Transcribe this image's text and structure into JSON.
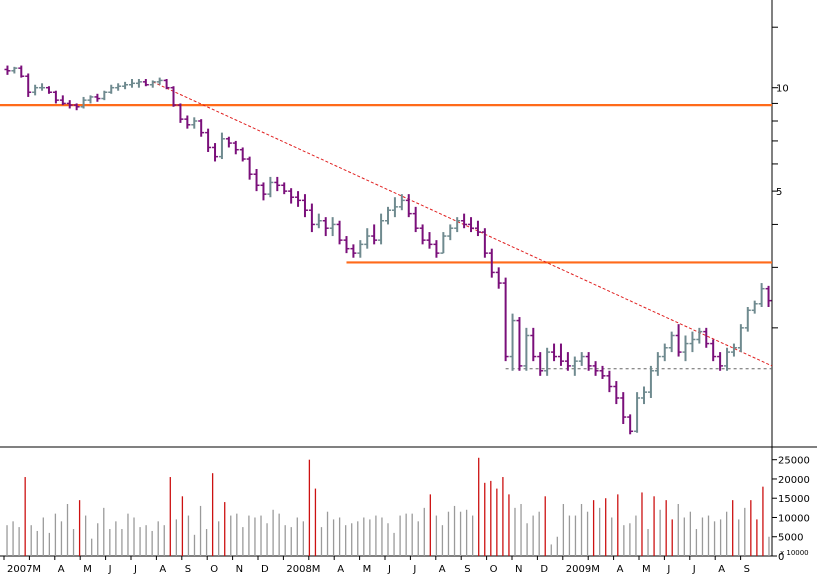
{
  "chart_data": [
    {
      "type": "ohlc",
      "title": "",
      "xlabel": "",
      "ylabel": "",
      "y_scale": "log",
      "ylim": [
        0.9,
        18
      ],
      "ytick_labels": [
        "10",
        "5"
      ],
      "x_tick_labels": [
        "2007",
        "M",
        "A",
        "M",
        "J",
        "J",
        "A",
        "S",
        "O",
        "N",
        "D",
        "2008",
        "M",
        "A",
        "M",
        "J",
        "J",
        "A",
        "S",
        "O",
        "N",
        "D",
        "2009",
        "M",
        "A",
        "M",
        "J",
        "J",
        "A",
        "S"
      ],
      "up_color": "#6f8a8f",
      "down_color": "#7a0f7a",
      "bars": [
        [
          11.3,
          11.6,
          10.9,
          11.2
        ],
        [
          11.2,
          11.5,
          11.0,
          11.4
        ],
        [
          11.4,
          11.6,
          10.7,
          10.8
        ],
        [
          10.8,
          11.0,
          9.4,
          9.7
        ],
        [
          9.7,
          10.2,
          9.5,
          10.0
        ],
        [
          10.0,
          10.3,
          9.8,
          10.0
        ],
        [
          10.0,
          10.1,
          9.6,
          9.7
        ],
        [
          9.7,
          9.8,
          9.0,
          9.2
        ],
        [
          9.2,
          9.5,
          8.9,
          9.0
        ],
        [
          9.0,
          9.2,
          8.7,
          8.9
        ],
        [
          8.9,
          9.0,
          8.6,
          8.8
        ],
        [
          8.8,
          9.4,
          8.7,
          9.2
        ],
        [
          9.2,
          9.5,
          9.0,
          9.4
        ],
        [
          9.4,
          9.6,
          9.1,
          9.3
        ],
        [
          9.3,
          9.8,
          9.2,
          9.7
        ],
        [
          9.7,
          10.2,
          9.6,
          10.0
        ],
        [
          10.0,
          10.3,
          9.8,
          10.1
        ],
        [
          10.1,
          10.4,
          9.9,
          10.2
        ],
        [
          10.2,
          10.6,
          10.0,
          10.3
        ],
        [
          10.3,
          10.6,
          10.0,
          10.4
        ],
        [
          10.4,
          10.6,
          10.1,
          10.2
        ],
        [
          10.2,
          10.5,
          10.0,
          10.4
        ],
        [
          10.4,
          10.7,
          10.2,
          10.5
        ],
        [
          10.5,
          10.6,
          9.9,
          10.0
        ],
        [
          10.0,
          10.1,
          8.8,
          8.9
        ],
        [
          8.9,
          9.0,
          7.9,
          8.1
        ],
        [
          8.1,
          8.3,
          7.6,
          7.8
        ],
        [
          7.8,
          8.2,
          7.6,
          8.0
        ],
        [
          8.0,
          8.1,
          7.2,
          7.4
        ],
        [
          7.4,
          7.6,
          6.5,
          6.7
        ],
        [
          6.7,
          6.9,
          6.1,
          6.3
        ],
        [
          6.3,
          7.4,
          6.2,
          7.1
        ],
        [
          7.1,
          7.2,
          6.7,
          6.9
        ],
        [
          6.9,
          7.0,
          6.4,
          6.6
        ],
        [
          6.6,
          6.7,
          6.1,
          6.2
        ],
        [
          6.2,
          6.3,
          5.4,
          5.6
        ],
        [
          5.6,
          5.8,
          5.0,
          5.2
        ],
        [
          5.2,
          5.3,
          4.7,
          4.9
        ],
        [
          4.9,
          5.5,
          4.8,
          5.3
        ],
        [
          5.3,
          5.5,
          5.0,
          5.2
        ],
        [
          5.2,
          5.3,
          4.9,
          5.0
        ],
        [
          5.0,
          5.1,
          4.6,
          4.8
        ],
        [
          4.8,
          5.0,
          4.5,
          4.7
        ],
        [
          4.7,
          4.9,
          4.2,
          4.4
        ],
        [
          4.4,
          4.6,
          3.8,
          4.0
        ],
        [
          4.0,
          4.3,
          3.9,
          4.1
        ],
        [
          4.1,
          4.2,
          3.7,
          3.9
        ],
        [
          3.9,
          4.2,
          3.7,
          4.0
        ],
        [
          4.0,
          4.1,
          3.5,
          3.6
        ],
        [
          3.6,
          3.7,
          3.3,
          3.4
        ],
        [
          3.4,
          3.5,
          3.2,
          3.3
        ],
        [
          3.3,
          3.6,
          3.2,
          3.5
        ],
        [
          3.5,
          3.9,
          3.4,
          3.7
        ],
        [
          3.7,
          4.0,
          3.5,
          3.6
        ],
        [
          3.6,
          4.3,
          3.5,
          4.1
        ],
        [
          4.1,
          4.5,
          4.0,
          4.4
        ],
        [
          4.4,
          4.8,
          4.2,
          4.5
        ],
        [
          4.5,
          4.9,
          4.4,
          4.7
        ],
        [
          4.7,
          4.9,
          4.2,
          4.3
        ],
        [
          4.3,
          4.5,
          3.8,
          3.9
        ],
        [
          3.9,
          4.0,
          3.5,
          3.6
        ],
        [
          3.6,
          3.8,
          3.4,
          3.5
        ],
        [
          3.5,
          3.6,
          3.2,
          3.3
        ],
        [
          3.3,
          3.8,
          3.3,
          3.7
        ],
        [
          3.7,
          4.0,
          3.6,
          3.9
        ],
        [
          3.9,
          4.2,
          3.8,
          4.1
        ],
        [
          4.1,
          4.3,
          3.9,
          4.0
        ],
        [
          4.0,
          4.2,
          3.8,
          3.9
        ],
        [
          3.9,
          4.1,
          3.7,
          3.8
        ],
        [
          3.8,
          3.9,
          3.2,
          3.3
        ],
        [
          3.3,
          3.4,
          2.8,
          2.9
        ],
        [
          2.9,
          3.0,
          2.6,
          2.7
        ],
        [
          2.7,
          2.8,
          1.6,
          1.65
        ],
        [
          1.65,
          2.2,
          1.5,
          2.1
        ],
        [
          2.1,
          2.15,
          1.5,
          1.55
        ],
        [
          1.55,
          2.0,
          1.5,
          1.9
        ],
        [
          1.9,
          2.0,
          1.6,
          1.65
        ],
        [
          1.65,
          1.7,
          1.45,
          1.5
        ],
        [
          1.5,
          1.75,
          1.45,
          1.7
        ],
        [
          1.7,
          1.8,
          1.6,
          1.65
        ],
        [
          1.65,
          1.8,
          1.55,
          1.6
        ],
        [
          1.6,
          1.7,
          1.5,
          1.55
        ],
        [
          1.55,
          1.65,
          1.45,
          1.6
        ],
        [
          1.6,
          1.7,
          1.55,
          1.65
        ],
        [
          1.65,
          1.7,
          1.5,
          1.55
        ],
        [
          1.55,
          1.6,
          1.45,
          1.5
        ],
        [
          1.5,
          1.55,
          1.42,
          1.45
        ],
        [
          1.45,
          1.5,
          1.3,
          1.35
        ],
        [
          1.35,
          1.4,
          1.2,
          1.25
        ],
        [
          1.25,
          1.3,
          1.05,
          1.1
        ],
        [
          1.1,
          1.12,
          0.98,
          1.0
        ],
        [
          1.0,
          1.3,
          0.99,
          1.25
        ],
        [
          1.25,
          1.35,
          1.2,
          1.3
        ],
        [
          1.3,
          1.55,
          1.25,
          1.5
        ],
        [
          1.5,
          1.7,
          1.45,
          1.65
        ],
        [
          1.65,
          1.8,
          1.6,
          1.75
        ],
        [
          1.75,
          1.95,
          1.7,
          1.9
        ],
        [
          1.9,
          2.05,
          1.65,
          1.7
        ],
        [
          1.7,
          1.9,
          1.6,
          1.8
        ],
        [
          1.8,
          1.95,
          1.7,
          1.85
        ],
        [
          1.85,
          2.0,
          1.8,
          1.95
        ],
        [
          1.95,
          2.0,
          1.75,
          1.8
        ],
        [
          1.8,
          1.85,
          1.6,
          1.65
        ],
        [
          1.65,
          1.7,
          1.5,
          1.55
        ],
        [
          1.55,
          1.75,
          1.5,
          1.7
        ],
        [
          1.7,
          1.8,
          1.65,
          1.75
        ],
        [
          1.75,
          2.05,
          1.7,
          2.0
        ],
        [
          2.0,
          2.3,
          1.95,
          2.25
        ],
        [
          2.25,
          2.4,
          2.2,
          2.35
        ],
        [
          2.35,
          2.7,
          2.3,
          2.6
        ],
        [
          2.6,
          2.65,
          2.3,
          2.4
        ]
      ],
      "resistance_lines": [
        {
          "y": 8.9,
          "x_start": 0,
          "x_end": 112
        },
        {
          "y": 3.1,
          "x_start": 49,
          "x_end": 112
        }
      ],
      "support_line": {
        "y": 1.52,
        "x_start": 72,
        "x_end": 108
      },
      "trendline": {
        "x_start": 21,
        "y_start": 10.4,
        "x_end": 112,
        "y_end": 1.55
      }
    },
    {
      "type": "bar",
      "title": "",
      "xlabel": "",
      "ylabel": "",
      "ylim": [
        0,
        27000
      ],
      "ytick_labels": [
        "25000",
        "20000",
        "15000",
        "10000",
        "5000",
        "0"
      ],
      "y_unit_label": "x 10000",
      "gridlines": false,
      "highlight_color": "#cc1111",
      "normal_color": "#9a9a9a",
      "values": [
        8000,
        9000,
        7500,
        20500,
        8000,
        6500,
        10000,
        6000,
        11000,
        9000,
        13500,
        7000,
        14500,
        10500,
        4500,
        8500,
        12500,
        7000,
        9000,
        7000,
        11000,
        10000,
        7500,
        8000,
        6500,
        9000,
        8000,
        20500,
        9500,
        15500,
        10500,
        5500,
        13000,
        7000,
        21500,
        9000,
        14000,
        10500,
        11000,
        7500,
        10500,
        10000,
        10500,
        8500,
        12000,
        11000,
        8000,
        7500,
        10000,
        9000,
        25000,
        17500,
        7500,
        11500,
        9500,
        10000,
        8000,
        8500,
        9000,
        10000,
        9500,
        10500,
        10000,
        8500,
        6000,
        10500,
        11000,
        11000,
        9000,
        12500,
        16000,
        10500,
        8000,
        11500,
        13000,
        11500,
        12000,
        10500,
        25500,
        19000,
        19500,
        17500,
        20500,
        16000,
        12500,
        13500,
        8500,
        10500,
        11500,
        15500,
        3000,
        5000,
        13500,
        10500,
        10500,
        13500,
        11500,
        14500,
        12500,
        15000,
        10000,
        16000,
        8000,
        8500,
        10500,
        16500,
        7000,
        15500,
        12000,
        14500,
        9500,
        13500,
        10000,
        11500,
        7000,
        10000,
        10500,
        9000,
        9500,
        11500,
        14500,
        9500,
        12500,
        14500,
        9500,
        18000,
        5000
      ],
      "highlight_index": [
        3,
        27,
        34,
        50,
        78,
        110,
        124
      ]
    }
  ]
}
